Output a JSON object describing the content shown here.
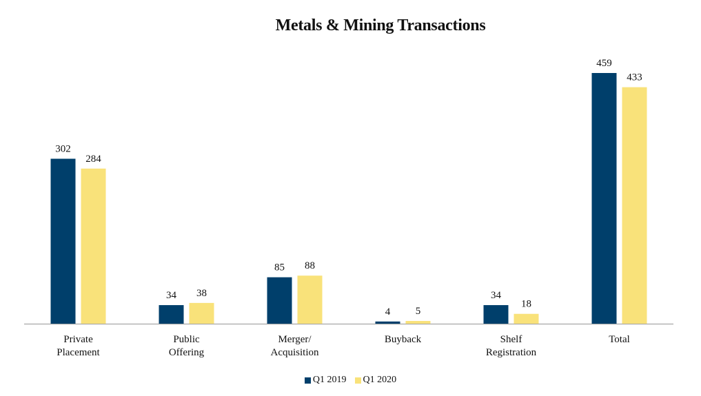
{
  "chart_data": {
    "type": "bar",
    "title": "Metals & Mining Transactions",
    "xlabel": "",
    "ylabel": "",
    "categories": [
      [
        "Private",
        "Placement"
      ],
      [
        "Public",
        "Offering"
      ],
      [
        "Merger/",
        "Acquisition"
      ],
      [
        "Buyback"
      ],
      [
        "Shelf",
        "Registration"
      ],
      [
        "Total"
      ]
    ],
    "series": [
      {
        "name": "Q1 2019",
        "color": "#003F6B",
        "values": [
          302,
          34,
          85,
          4,
          34,
          459
        ]
      },
      {
        "name": "Q1 2020",
        "color": "#F9E27A",
        "values": [
          284,
          38,
          88,
          5,
          18,
          433
        ]
      }
    ],
    "ylim": [
      0,
      580
    ],
    "grid": false,
    "legend_position": "bottom-center",
    "data_labels": true
  }
}
